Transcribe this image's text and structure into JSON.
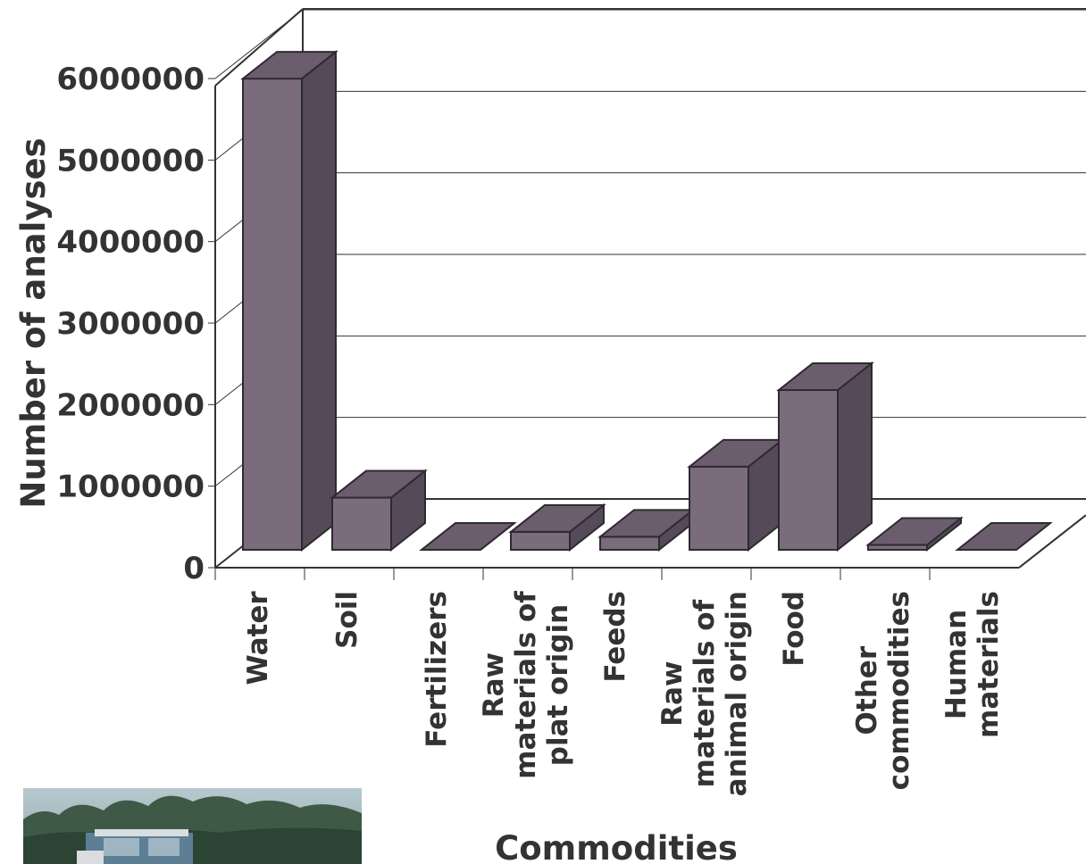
{
  "chart_data": {
    "type": "bar",
    "three_d": true,
    "categories": [
      [
        "Water"
      ],
      [
        "Soil"
      ],
      [
        "Fertilizers"
      ],
      [
        "Raw",
        "materials of",
        "plat origin"
      ],
      [
        "Feeds"
      ],
      [
        "Raw",
        "materials of",
        "animal origin"
      ],
      [
        "Food"
      ],
      [
        "Other",
        "commodities"
      ],
      [
        "Human",
        "materials"
      ]
    ],
    "values": [
      5780000,
      640000,
      0,
      220000,
      160000,
      1020000,
      1960000,
      60000,
      0
    ],
    "ylim": [
      0,
      6000000
    ],
    "yticks": [
      "0",
      "1000000",
      "2000000",
      "3000000",
      "4000000",
      "5000000",
      "6000000"
    ],
    "xlabel": "Commodities",
    "ylabel": "Number of analyses",
    "grid": true,
    "colors": {
      "bar_front": "#7a6c7d",
      "bar_side": "#544a58",
      "bar_top": "#6b5d6e"
    }
  },
  "photo": {
    "icon": "tractor-field-photo"
  }
}
